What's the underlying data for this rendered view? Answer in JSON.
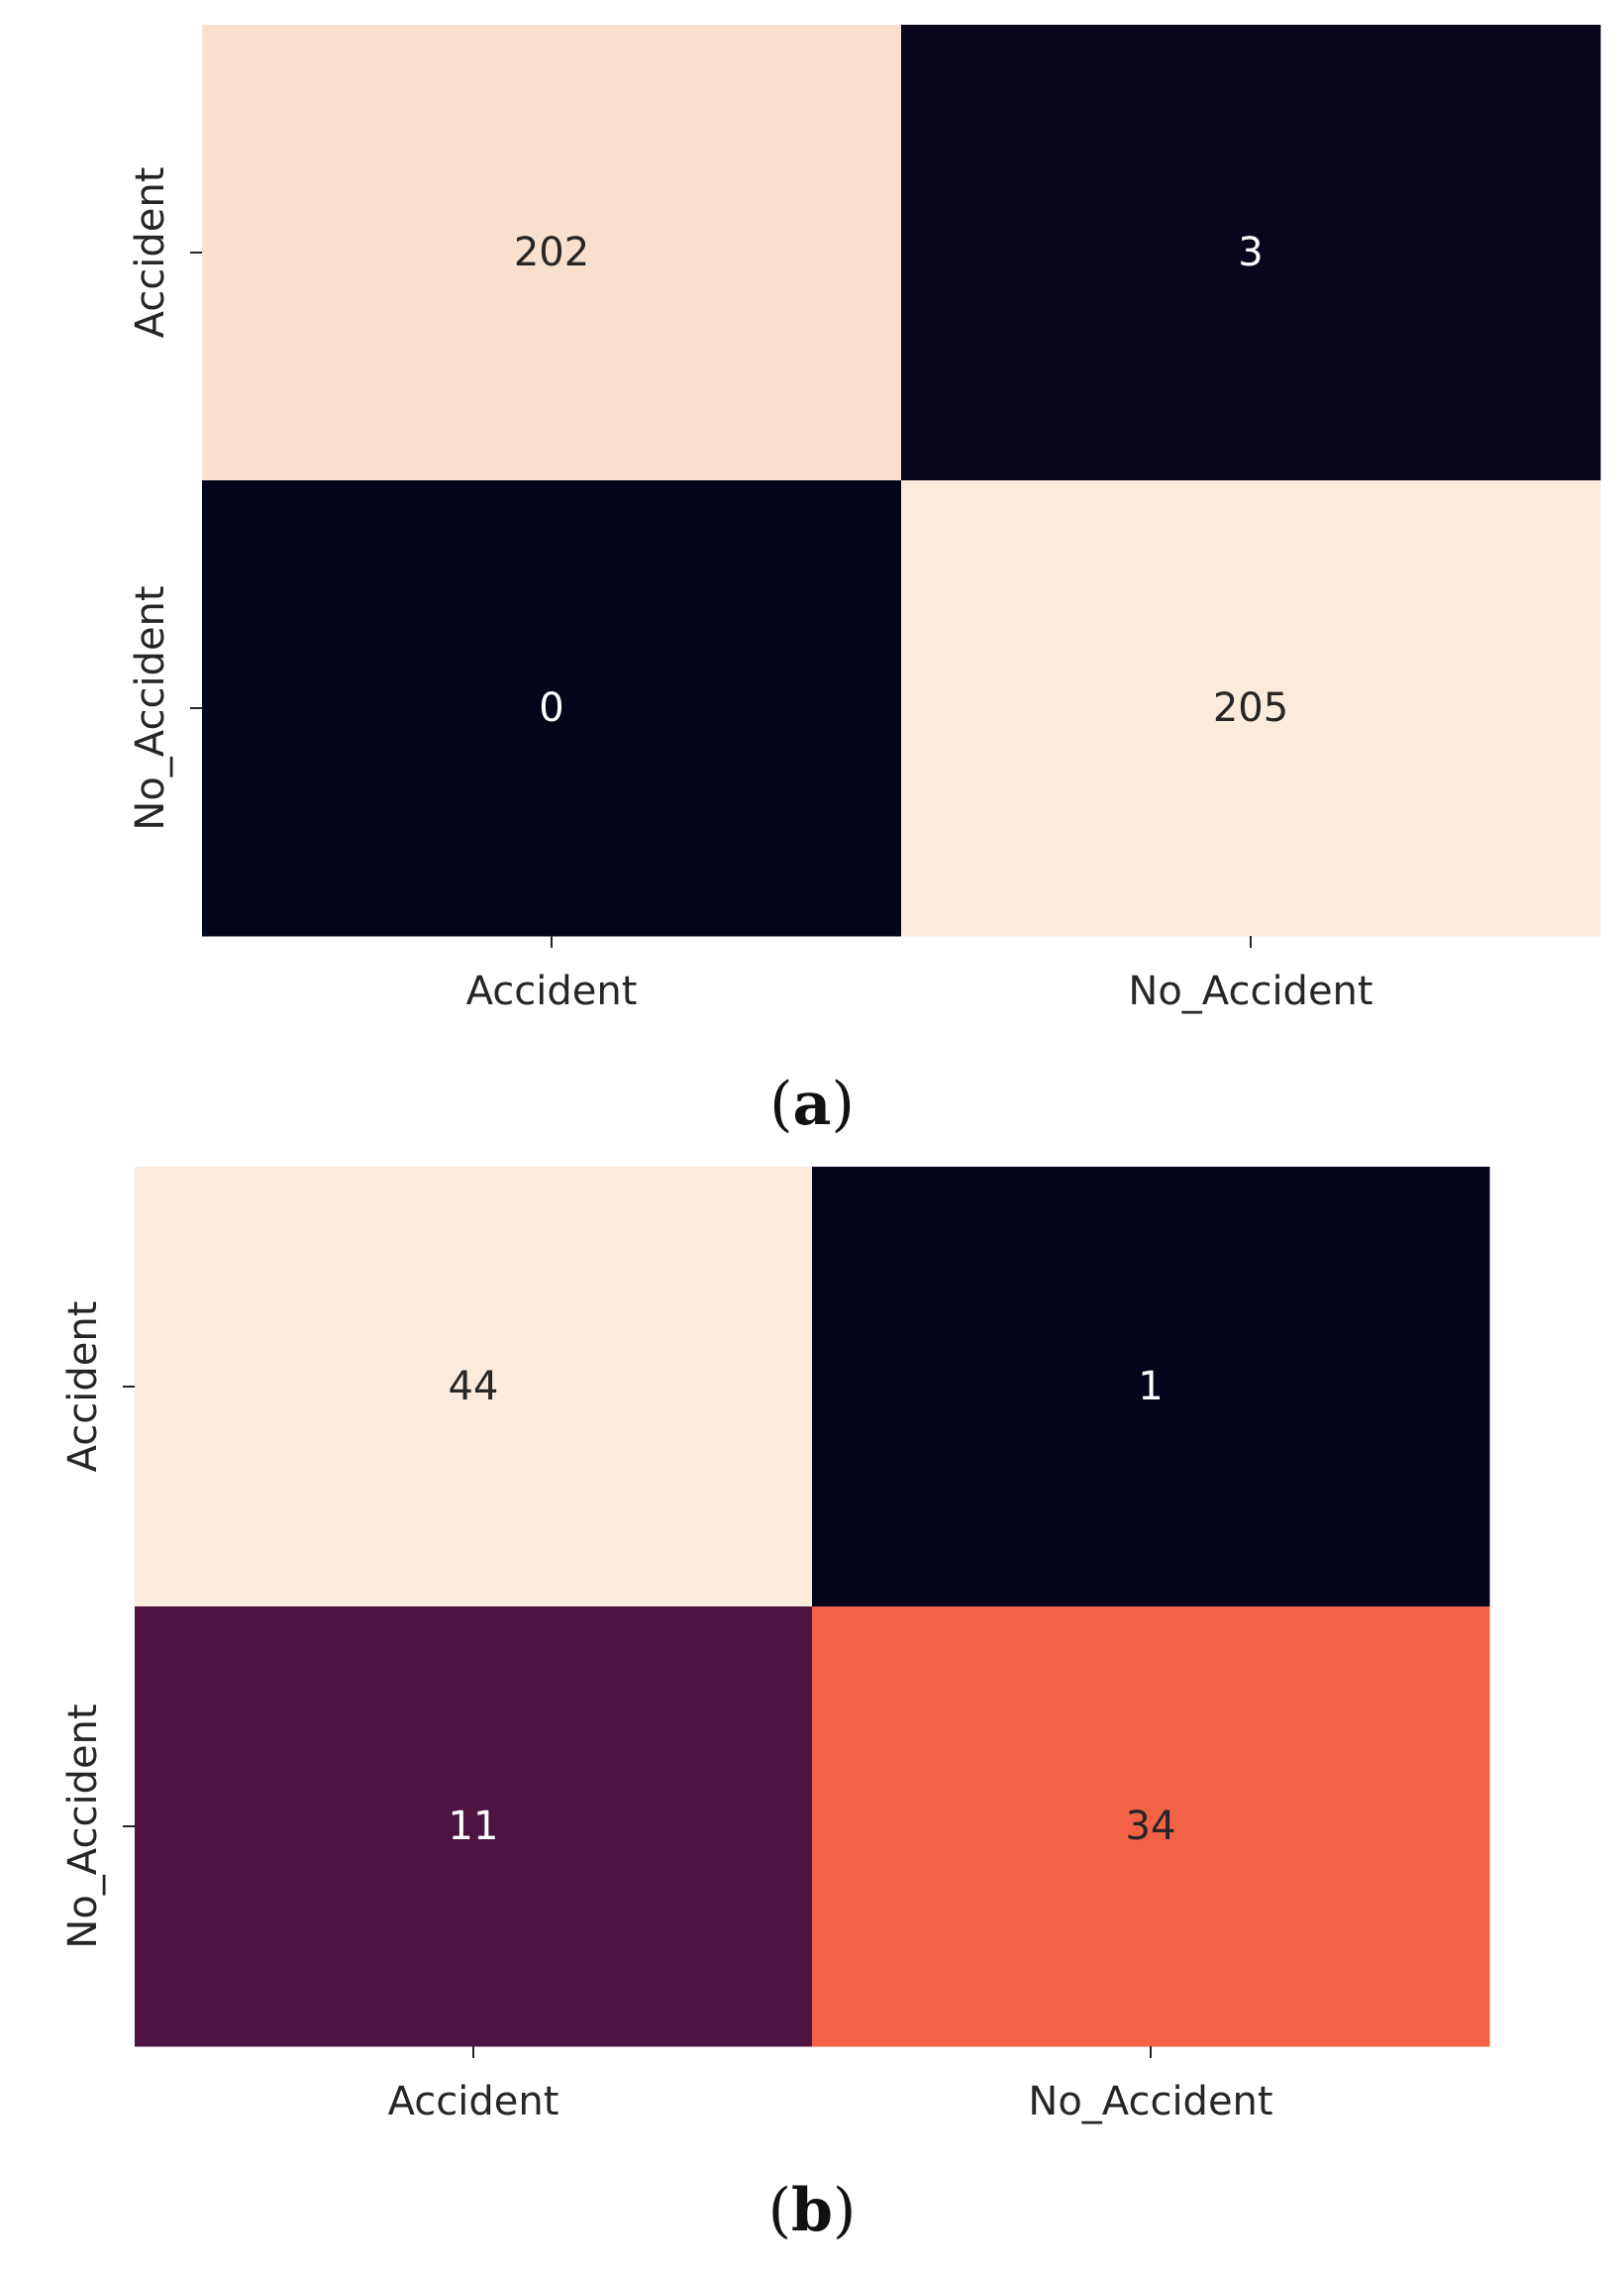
{
  "colors": {
    "colormap": "rocket",
    "vmin_color": "#03051a",
    "vmax_color": "#faebdd",
    "tick_color": "#262626"
  },
  "chart_data": [
    {
      "type": "heatmap",
      "panel_label": "a",
      "x_categories": [
        "Accident",
        "No_Accident"
      ],
      "y_categories": [
        "Accident",
        "No_Accident"
      ],
      "values": [
        [
          202,
          3
        ],
        [
          0,
          205
        ]
      ],
      "colorbar": false
    },
    {
      "type": "heatmap",
      "panel_label": "b",
      "x_categories": [
        "Accident",
        "No_Accident"
      ],
      "y_categories": [
        "Accident",
        "No_Accident"
      ],
      "values": [
        [
          44,
          1
        ],
        [
          11,
          34
        ]
      ],
      "colorbar": false
    }
  ]
}
